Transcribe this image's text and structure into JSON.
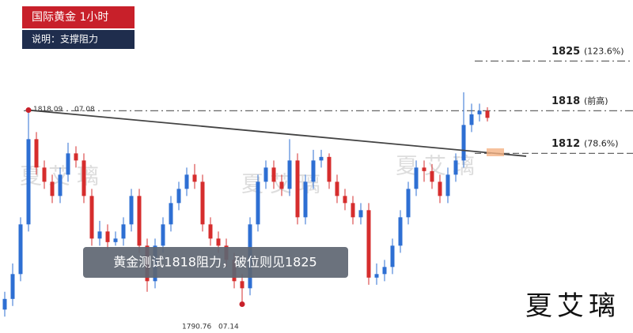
{
  "chart_data": {
    "type": "candlestick",
    "title": "国际黄金 1小时",
    "subtitle": "说明：支撑阻力",
    "caption": "黄金测试1818阻力，破位则见1825",
    "watermark": "夏艾璃",
    "signature": "夏艾璃",
    "ylim": [
      1786.7,
      1833.6
    ],
    "up_color": "#2e6fd3",
    "down_color": "#d62d2d",
    "open": [
      1790,
      1791.5,
      1795,
      1802,
      1814,
      1810,
      1808,
      1806,
      1809,
      1812,
      1811,
      1806,
      1800,
      1801,
      1799.5,
      1800,
      1802,
      1806,
      1799,
      1794,
      1799,
      1802,
      1805,
      1807,
      1809,
      1808,
      1802,
      1800,
      1799,
      1797,
      1794,
      1793,
      1802,
      1808,
      1810,
      1808,
      1807,
      1811,
      1803,
      1808,
      1811,
      1811.5,
      1808,
      1806,
      1805,
      1803,
      1804,
      1794.5,
      1795,
      1796,
      1799,
      1803,
      1807,
      1810,
      1809.5,
      1808,
      1806,
      1809,
      1811,
      1816,
      1817.5,
      1818
    ],
    "high": [
      1792.5,
      1796.5,
      1803,
      1818.09,
      1815,
      1811,
      1809,
      1810,
      1813.5,
      1813,
      1812,
      1807,
      1802.5,
      1802,
      1801,
      1803,
      1807,
      1807,
      1800,
      1800,
      1803,
      1806,
      1808,
      1810,
      1810.5,
      1809,
      1803,
      1801,
      1800,
      1798,
      1795,
      1803,
      1809,
      1811,
      1811,
      1809,
      1814,
      1812,
      1809,
      1812.5,
      1812.5,
      1812,
      1809,
      1807,
      1806,
      1805,
      1805,
      1796.5,
      1797,
      1800,
      1804,
      1808,
      1811,
      1811,
      1810.5,
      1809,
      1810,
      1812,
      1820.6,
      1819,
      1819,
      1818.5
    ],
    "low": [
      1789,
      1790.5,
      1794,
      1801,
      1809,
      1807,
      1805,
      1805,
      1808,
      1810,
      1805,
      1799,
      1799,
      1798.5,
      1799,
      1799,
      1801,
      1798,
      1792.5,
      1793,
      1798,
      1801,
      1804,
      1806,
      1807,
      1801,
      1799,
      1798,
      1796,
      1793,
      1790.76,
      1792,
      1801,
      1807,
      1807,
      1806,
      1806,
      1802,
      1802,
      1807,
      1810,
      1807,
      1805,
      1804,
      1802,
      1802,
      1793.5,
      1793.5,
      1794,
      1795,
      1798,
      1802,
      1806,
      1808,
      1807,
      1805,
      1805,
      1808,
      1810,
      1815,
      1816.5,
      1816.5
    ],
    "close": [
      1791.5,
      1795,
      1802,
      1814,
      1810,
      1808,
      1806,
      1809,
      1812,
      1811,
      1806,
      1800,
      1801,
      1799.5,
      1800,
      1802,
      1806,
      1799,
      1794,
      1799,
      1802,
      1805,
      1807,
      1809,
      1808,
      1802,
      1800,
      1799,
      1797,
      1794,
      1793,
      1802,
      1808,
      1810,
      1808,
      1807,
      1811,
      1803,
      1808,
      1811,
      1811.5,
      1808,
      1806,
      1805,
      1803,
      1804,
      1794.5,
      1795,
      1796,
      1799,
      1803,
      1807,
      1810,
      1809.5,
      1808,
      1806,
      1809,
      1811,
      1816,
      1817.5,
      1818,
      1817
    ],
    "trendline": [
      1818.09,
      1811.6
    ],
    "levels": [
      {
        "value": 1825,
        "note": "(123.6%)"
      },
      {
        "value": 1818,
        "note": "(前高)"
      },
      {
        "value": 1812,
        "note": "(78.6%)"
      }
    ],
    "annotations": [
      {
        "value": 1818.09,
        "date": "07.08"
      },
      {
        "value": 1790.76,
        "date": "07.14"
      }
    ]
  }
}
